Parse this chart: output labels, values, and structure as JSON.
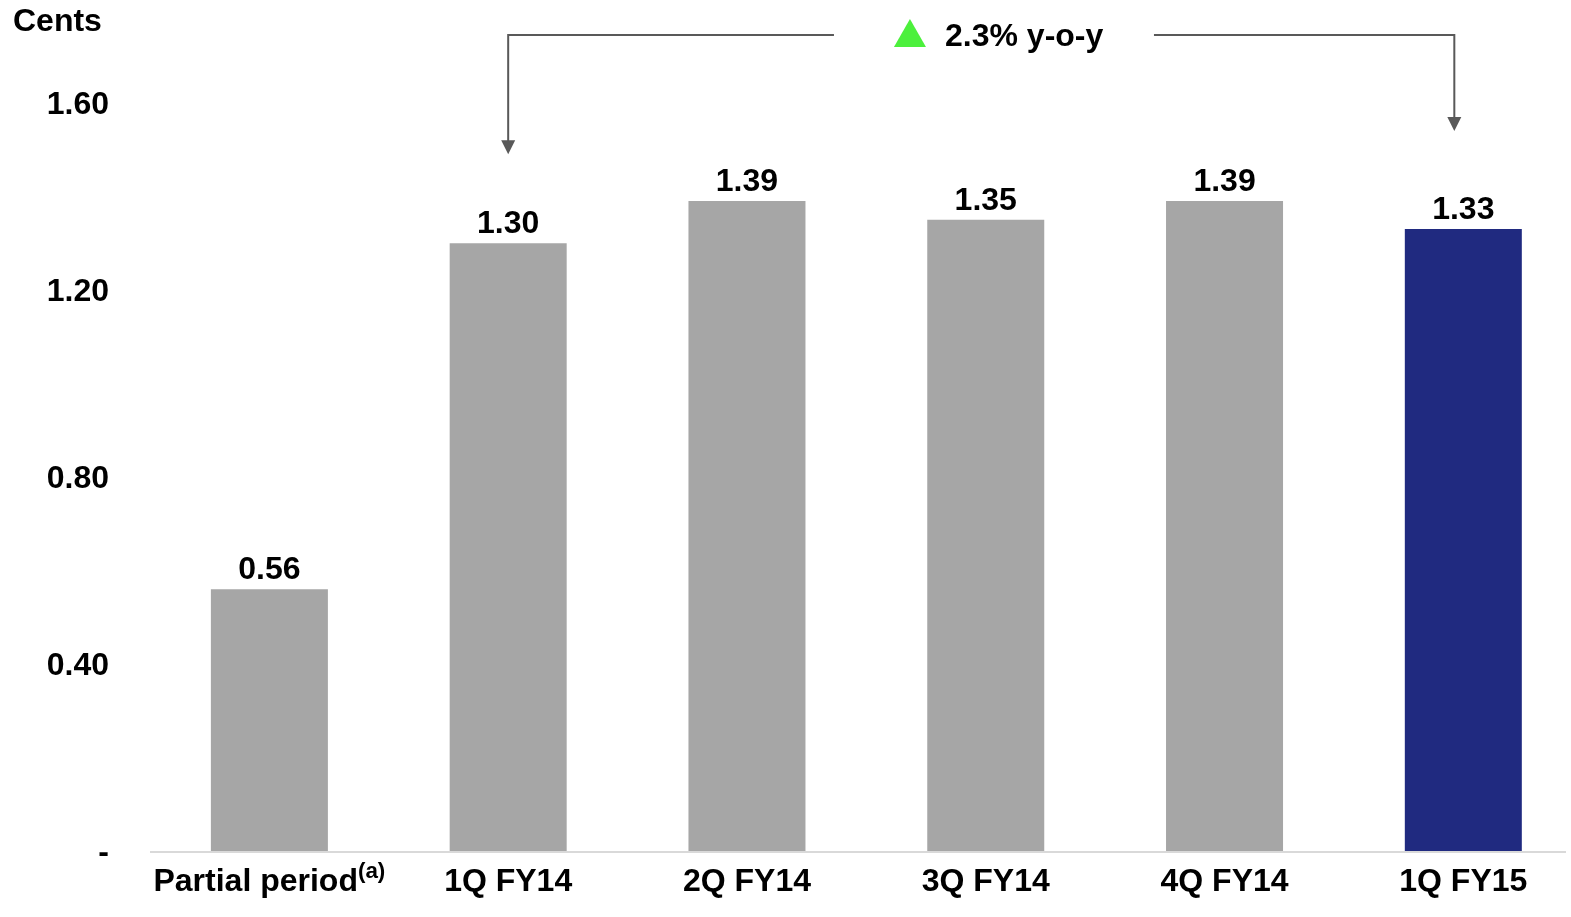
{
  "chart_data": {
    "type": "bar",
    "ylabel": "Cents",
    "categories": [
      "Partial period$^{(a)}$",
      "1Q FY14",
      "2Q FY14",
      "3Q FY14",
      "4Q FY14",
      "1Q FY15"
    ],
    "values": [
      0.56,
      1.3,
      1.39,
      1.35,
      1.39,
      1.33
    ],
    "value_labels": [
      "0.56",
      "1.30",
      "1.39",
      "1.35",
      "1.39",
      "1.33"
    ],
    "colors": [
      "#a6a6a6",
      "#a6a6a6",
      "#a6a6a6",
      "#a6a6a6",
      "#a6a6a6",
      "#202a80"
    ],
    "ylim": [
      0,
      1.82
    ],
    "yticks": [
      {
        "value": 0,
        "label": "-"
      },
      {
        "value": 0.4,
        "label": "0.40"
      },
      {
        "value": 0.8,
        "label": "0.80"
      },
      {
        "value": 1.2,
        "label": "1.20"
      },
      {
        "value": 1.6,
        "label": "1.60"
      }
    ],
    "annotations": [
      "2.3% y-o-y"
    ],
    "grid": false
  }
}
